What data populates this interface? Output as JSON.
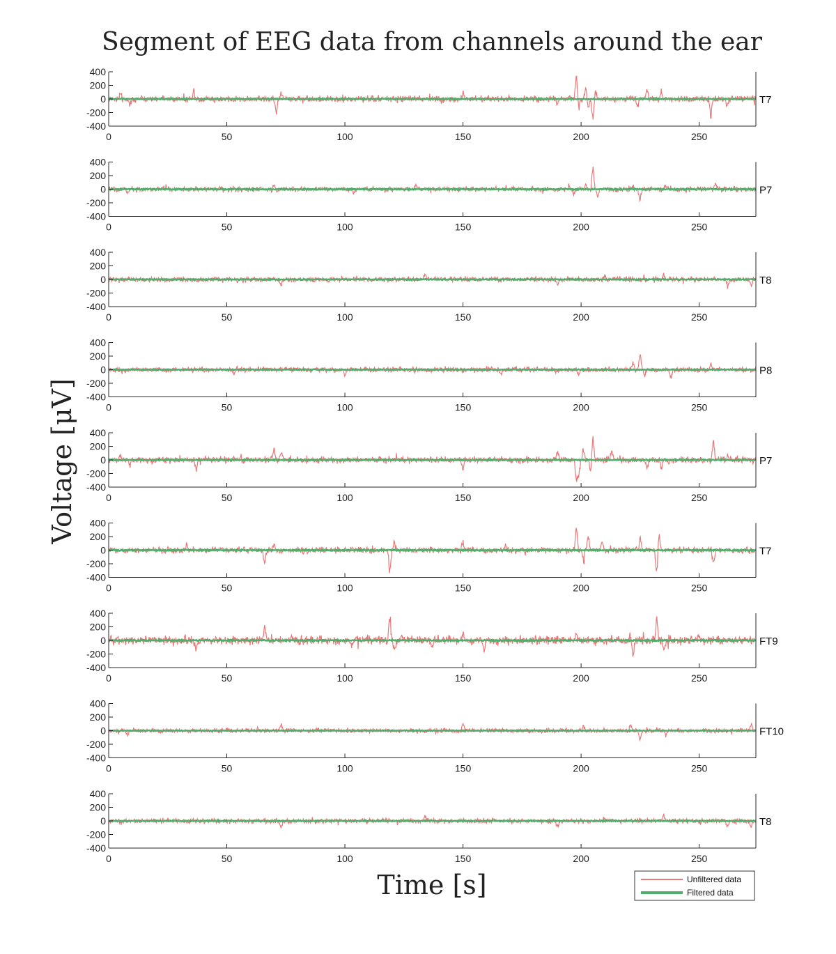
{
  "chart_data": {
    "type": "line",
    "title": "Segment of EEG data from channels around the ear",
    "xlabel": "Time [s]",
    "ylabel": "Voltage [μV]",
    "xlim": [
      0,
      274
    ],
    "ylim": [
      -400,
      400
    ],
    "xticks": [
      0,
      50,
      100,
      150,
      200,
      250
    ],
    "yticks": [
      400,
      200,
      0,
      -200,
      -400
    ],
    "grid": false,
    "legend_position": "bottom-right",
    "legend": [
      {
        "label": "Unfiltered data",
        "color": "#e87979"
      },
      {
        "label": "Filtered data",
        "color": "#4fae6b"
      }
    ],
    "channels": [
      {
        "name": "T7",
        "base_amplitude": 28,
        "filtered_amplitude": 10,
        "spikes": [
          [
            5,
            90
          ],
          [
            9,
            -95
          ],
          [
            36,
            150
          ],
          [
            71,
            -230
          ],
          [
            73,
            110
          ],
          [
            150,
            110
          ],
          [
            190,
            -130
          ],
          [
            198,
            400
          ],
          [
            199,
            -150
          ],
          [
            202,
            190
          ],
          [
            203,
            -170
          ],
          [
            205,
            -390
          ],
          [
            206,
            150
          ],
          [
            224,
            -180
          ],
          [
            228,
            150
          ],
          [
            234,
            150
          ],
          [
            255,
            -350
          ],
          [
            262,
            -120
          ]
        ]
      },
      {
        "name": "P7",
        "base_amplitude": 22,
        "filtered_amplitude": 10,
        "spikes": [
          [
            8,
            -70
          ],
          [
            70,
            60
          ],
          [
            104,
            -80
          ],
          [
            130,
            100
          ],
          [
            195,
            70
          ],
          [
            197,
            -80
          ],
          [
            202,
            80
          ],
          [
            205,
            400
          ],
          [
            207,
            -150
          ],
          [
            225,
            -200
          ],
          [
            236,
            80
          ],
          [
            257,
            100
          ]
        ]
      },
      {
        "name": "T8",
        "base_amplitude": 22,
        "filtered_amplitude": 9,
        "spikes": [
          [
            73,
            -100
          ],
          [
            134,
            90
          ],
          [
            190,
            -100
          ],
          [
            210,
            80
          ],
          [
            235,
            110
          ],
          [
            262,
            -120
          ],
          [
            272,
            -110
          ]
        ]
      },
      {
        "name": "P8",
        "base_amplitude": 22,
        "filtered_amplitude": 9,
        "spikes": [
          [
            53,
            -80
          ],
          [
            100,
            -110
          ],
          [
            166,
            -90
          ],
          [
            199,
            -110
          ],
          [
            222,
            150
          ],
          [
            225,
            300
          ],
          [
            227,
            -100
          ],
          [
            238,
            -160
          ],
          [
            255,
            120
          ]
        ]
      },
      {
        "name": "P7",
        "base_amplitude": 28,
        "filtered_amplitude": 10,
        "spikes": [
          [
            5,
            90
          ],
          [
            9,
            -100
          ],
          [
            37,
            -160
          ],
          [
            70,
            230
          ],
          [
            73,
            130
          ],
          [
            150,
            -150
          ],
          [
            190,
            150
          ],
          [
            198,
            -400
          ],
          [
            199,
            -300
          ],
          [
            201,
            200
          ],
          [
            204,
            -200
          ],
          [
            205,
            400
          ],
          [
            213,
            180
          ],
          [
            228,
            -170
          ],
          [
            234,
            -150
          ],
          [
            256,
            350
          ],
          [
            262,
            80
          ]
        ]
      },
      {
        "name": "T7",
        "base_amplitude": 28,
        "filtered_amplitude": 10,
        "spikes": [
          [
            33,
            100
          ],
          [
            66,
            -210
          ],
          [
            70,
            100
          ],
          [
            119,
            -400
          ],
          [
            121,
            180
          ],
          [
            150,
            160
          ],
          [
            168,
            80
          ],
          [
            198,
            400
          ],
          [
            201,
            -180
          ],
          [
            203,
            250
          ],
          [
            209,
            150
          ],
          [
            225,
            250
          ],
          [
            232,
            -400
          ],
          [
            233,
            280
          ],
          [
            256,
            -280
          ]
        ]
      },
      {
        "name": "FT9",
        "base_amplitude": 38,
        "filtered_amplitude": 12,
        "spikes": [
          [
            37,
            -130
          ],
          [
            66,
            260
          ],
          [
            103,
            -100
          ],
          [
            119,
            400
          ],
          [
            121,
            -180
          ],
          [
            137,
            -140
          ],
          [
            150,
            150
          ],
          [
            159,
            -180
          ],
          [
            198,
            140
          ],
          [
            222,
            -240
          ],
          [
            232,
            390
          ],
          [
            235,
            -150
          ],
          [
            250,
            100
          ]
        ]
      },
      {
        "name": "FT10",
        "base_amplitude": 20,
        "filtered_amplitude": 8,
        "spikes": [
          [
            8,
            -90
          ],
          [
            73,
            110
          ],
          [
            150,
            140
          ],
          [
            201,
            80
          ],
          [
            221,
            110
          ],
          [
            225,
            -160
          ],
          [
            236,
            -100
          ],
          [
            272,
            100
          ]
        ]
      },
      {
        "name": "T8",
        "base_amplitude": 22,
        "filtered_amplitude": 9,
        "spikes": [
          [
            73,
            -100
          ],
          [
            134,
            90
          ],
          [
            190,
            -100
          ],
          [
            210,
            80
          ],
          [
            235,
            110
          ],
          [
            262,
            -120
          ],
          [
            272,
            -110
          ]
        ]
      }
    ]
  }
}
